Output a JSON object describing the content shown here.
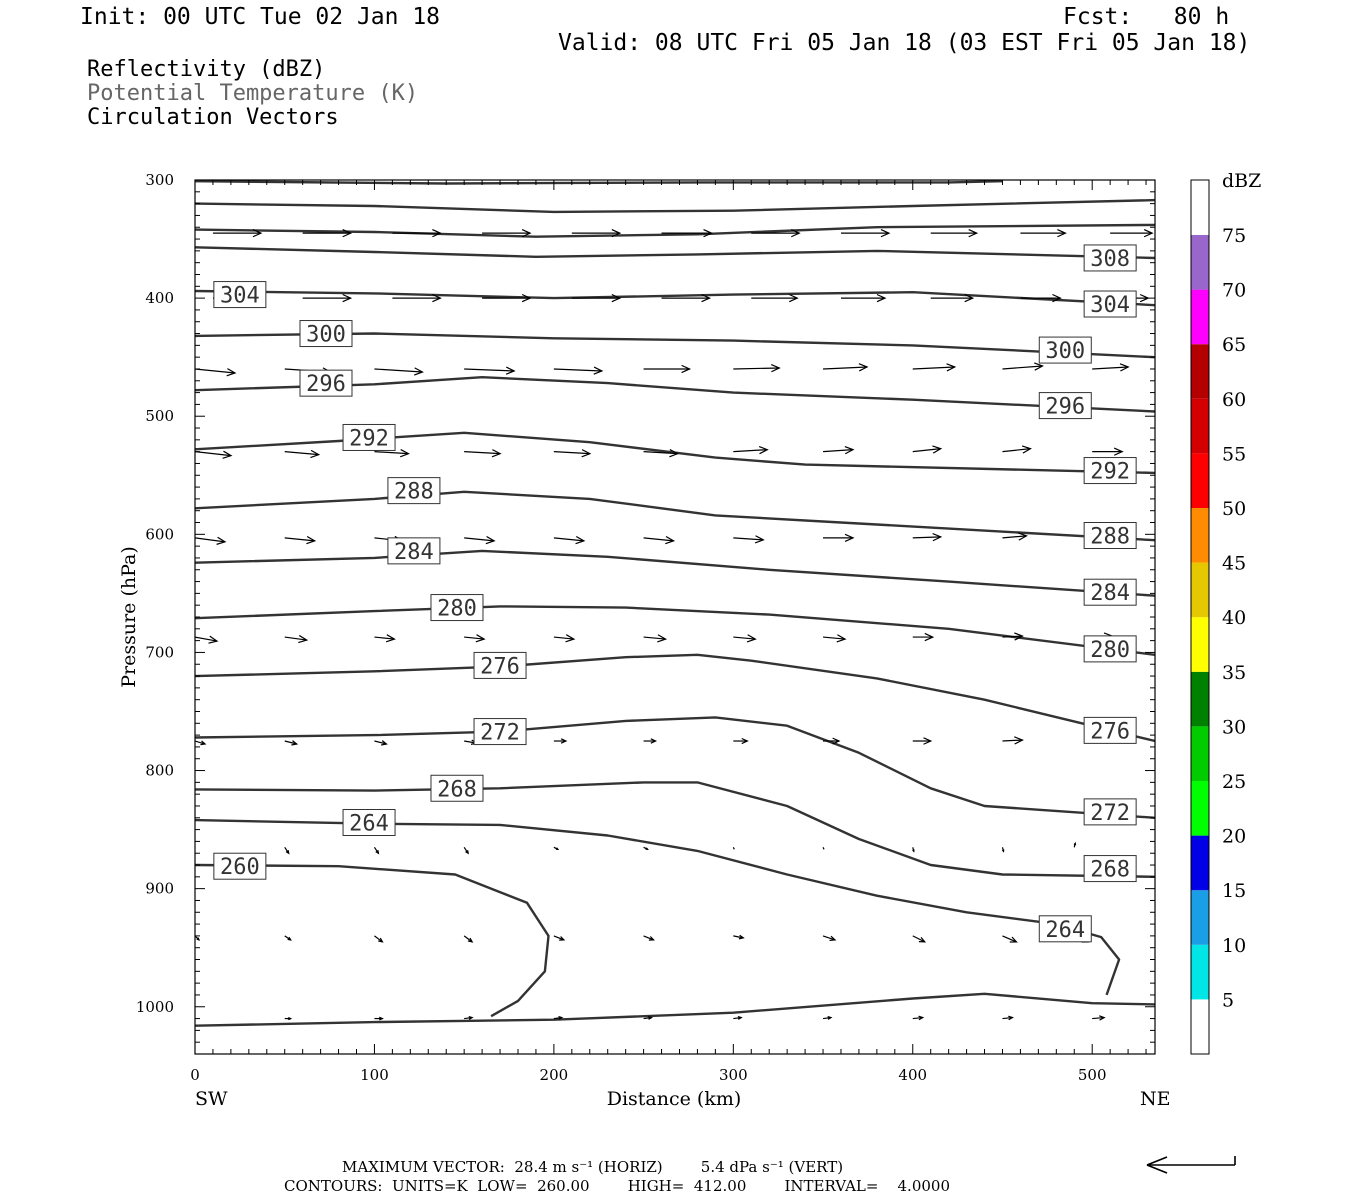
{
  "header": {
    "init": "Init: 00 UTC Tue 02 Jan 18",
    "fcst": "Fcst:   80 h",
    "valid": "Valid: 08 UTC Fri 05 Jan 18 (03 EST Fri 05 Jan 18)"
  },
  "legend": {
    "reflectivity": "Reflectivity (dBZ)",
    "theta": "Potential Temperature (K)",
    "vectors": "Circulation Vectors"
  },
  "colorbar": {
    "unit": "dBZ",
    "levels": [
      "5",
      "10",
      "15",
      "20",
      "25",
      "30",
      "35",
      "40",
      "45",
      "50",
      "55",
      "60",
      "65",
      "70",
      "75"
    ],
    "colors": [
      "#00e5e5",
      "#1a9ee6",
      "#0000e6",
      "#00ff00",
      "#00cc00",
      "#008000",
      "#ffff00",
      "#e6c800",
      "#ff8c00",
      "#ff0000",
      "#d40000",
      "#b40000",
      "#ff00ff",
      "#9966cc",
      "#ffffff"
    ]
  },
  "footer": {
    "line1": "MAXIMUM VECTOR:  28.4 m s⁻¹ (HORIZ)        5.4 dPa s⁻¹ (VERT)",
    "line2": "CONTOURS:  UNITS=K  LOW=  260.00        HIGH=  412.00        INTERVAL=    4.0000"
  },
  "chart_data": {
    "type": "cross-section",
    "xlabel": "Distance (km)",
    "ylabel": "Pressure (hPa)",
    "xlim": [
      0,
      535
    ],
    "ylim": [
      1040,
      300
    ],
    "x_ticks": [
      0,
      100,
      200,
      300,
      400,
      500
    ],
    "y_ticks": [
      300,
      400,
      500,
      600,
      700,
      800,
      900,
      1000
    ],
    "x_end_labels": {
      "left": "SW",
      "right": "NE"
    },
    "contour_labels": [
      {
        "text": "308",
        "x": 510,
        "p": 366
      },
      {
        "text": "304",
        "x": 25,
        "p": 397
      },
      {
        "text": "304",
        "x": 510,
        "p": 405
      },
      {
        "text": "300",
        "x": 73,
        "p": 430
      },
      {
        "text": "300",
        "x": 485,
        "p": 444
      },
      {
        "text": "296",
        "x": 73,
        "p": 472
      },
      {
        "text": "296",
        "x": 485,
        "p": 491
      },
      {
        "text": "292",
        "x": 97,
        "p": 518
      },
      {
        "text": "292",
        "x": 510,
        "p": 546
      },
      {
        "text": "288",
        "x": 122,
        "p": 563
      },
      {
        "text": "288",
        "x": 510,
        "p": 601
      },
      {
        "text": "284",
        "x": 122,
        "p": 614
      },
      {
        "text": "284",
        "x": 510,
        "p": 649
      },
      {
        "text": "280",
        "x": 146,
        "p": 662
      },
      {
        "text": "280",
        "x": 510,
        "p": 697
      },
      {
        "text": "276",
        "x": 170,
        "p": 711
      },
      {
        "text": "276",
        "x": 510,
        "p": 766
      },
      {
        "text": "272",
        "x": 170,
        "p": 767
      },
      {
        "text": "272",
        "x": 510,
        "p": 835
      },
      {
        "text": "268",
        "x": 146,
        "p": 815
      },
      {
        "text": "268",
        "x": 510,
        "p": 883
      },
      {
        "text": "264",
        "x": 97,
        "p": 844
      },
      {
        "text": "264",
        "x": 485,
        "p": 934
      },
      {
        "text": "260",
        "x": 25,
        "p": 881
      }
    ],
    "theta_contours": [
      {
        "theta": 312,
        "points": [
          [
            0,
            301
          ],
          [
            140,
            303
          ],
          [
            280,
            302
          ],
          [
            420,
            302
          ],
          [
            450,
            301
          ]
        ]
      },
      {
        "theta": 310,
        "points": [
          [
            0,
            320
          ],
          [
            100,
            322
          ],
          [
            200,
            327
          ],
          [
            300,
            326
          ],
          [
            400,
            322
          ],
          [
            535,
            317
          ]
        ]
      },
      {
        "theta": 308,
        "points": [
          [
            0,
            342
          ],
          [
            100,
            344
          ],
          [
            190,
            348
          ],
          [
            280,
            346
          ],
          [
            380,
            340
          ],
          [
            535,
            338
          ]
        ]
      },
      {
        "theta": 306,
        "points": [
          [
            0,
            357
          ],
          [
            100,
            361
          ],
          [
            190,
            365
          ],
          [
            280,
            363
          ],
          [
            380,
            360
          ],
          [
            535,
            366
          ]
        ]
      },
      {
        "theta": 304,
        "points": [
          [
            0,
            394
          ],
          [
            100,
            396
          ],
          [
            200,
            400
          ],
          [
            300,
            397
          ],
          [
            400,
            395
          ],
          [
            535,
            406
          ]
        ]
      },
      {
        "theta": 300,
        "points": [
          [
            0,
            432
          ],
          [
            100,
            430
          ],
          [
            200,
            434
          ],
          [
            300,
            436
          ],
          [
            400,
            440
          ],
          [
            535,
            450
          ]
        ]
      },
      {
        "theta": 296,
        "points": [
          [
            0,
            478
          ],
          [
            100,
            473
          ],
          [
            160,
            467
          ],
          [
            230,
            472
          ],
          [
            300,
            480
          ],
          [
            400,
            486
          ],
          [
            535,
            496
          ]
        ]
      },
      {
        "theta": 292,
        "points": [
          [
            0,
            528
          ],
          [
            80,
            521
          ],
          [
            150,
            514
          ],
          [
            220,
            522
          ],
          [
            290,
            535
          ],
          [
            340,
            541
          ],
          [
            535,
            548
          ]
        ]
      },
      {
        "theta": 288,
        "points": [
          [
            0,
            578
          ],
          [
            100,
            570
          ],
          [
            150,
            564
          ],
          [
            220,
            570
          ],
          [
            290,
            584
          ],
          [
            360,
            590
          ],
          [
            535,
            605
          ]
        ]
      },
      {
        "theta": 284,
        "points": [
          [
            0,
            624
          ],
          [
            100,
            620
          ],
          [
            160,
            614
          ],
          [
            230,
            619
          ],
          [
            320,
            630
          ],
          [
            420,
            640
          ],
          [
            535,
            652
          ]
        ]
      },
      {
        "theta": 280,
        "points": [
          [
            0,
            671
          ],
          [
            100,
            665
          ],
          [
            170,
            661
          ],
          [
            240,
            662
          ],
          [
            320,
            668
          ],
          [
            420,
            680
          ],
          [
            535,
            702
          ]
        ]
      },
      {
        "theta": 276,
        "points": [
          [
            0,
            720
          ],
          [
            100,
            716
          ],
          [
            170,
            712
          ],
          [
            240,
            704
          ],
          [
            280,
            702
          ],
          [
            310,
            707
          ],
          [
            380,
            722
          ],
          [
            440,
            740
          ],
          [
            535,
            775
          ]
        ]
      },
      {
        "theta": 272,
        "points": [
          [
            0,
            772
          ],
          [
            100,
            770
          ],
          [
            170,
            767
          ],
          [
            240,
            758
          ],
          [
            290,
            755
          ],
          [
            330,
            762
          ],
          [
            370,
            785
          ],
          [
            410,
            815
          ],
          [
            440,
            830
          ],
          [
            535,
            840
          ]
        ]
      },
      {
        "theta": 268,
        "points": [
          [
            0,
            816
          ],
          [
            100,
            817
          ],
          [
            170,
            815
          ],
          [
            250,
            810
          ],
          [
            280,
            810
          ],
          [
            330,
            830
          ],
          [
            370,
            858
          ],
          [
            410,
            880
          ],
          [
            450,
            888
          ],
          [
            535,
            890
          ]
        ]
      },
      {
        "theta": 264,
        "points": [
          [
            0,
            842
          ],
          [
            100,
            845
          ],
          [
            170,
            846
          ],
          [
            230,
            855
          ],
          [
            280,
            868
          ],
          [
            330,
            888
          ],
          [
            380,
            906
          ],
          [
            430,
            920
          ],
          [
            480,
            930
          ],
          [
            505,
            941
          ],
          [
            515,
            960
          ],
          [
            508,
            990
          ]
        ]
      },
      {
        "theta": 260,
        "points": [
          [
            0,
            880
          ],
          [
            80,
            881
          ],
          [
            145,
            888
          ],
          [
            185,
            912
          ],
          [
            197,
            940
          ],
          [
            195,
            970
          ],
          [
            180,
            995
          ],
          [
            165,
            1008
          ]
        ]
      },
      {
        "theta": 256,
        "points": [
          [
            0,
            1016
          ],
          [
            100,
            1013
          ],
          [
            200,
            1011
          ],
          [
            300,
            1005
          ],
          [
            400,
            993
          ],
          [
            440,
            989
          ],
          [
            500,
            997
          ],
          [
            535,
            998
          ]
        ]
      }
    ],
    "vector_rows": [
      {
        "p": 345,
        "x": [
          10,
          60,
          110,
          160,
          210,
          260,
          310,
          360,
          410,
          460,
          510
        ],
        "u": [
          48,
          48,
          48,
          48,
          48,
          50,
          48,
          48,
          46,
          45,
          42
        ],
        "w": [
          0,
          0,
          0,
          0,
          0,
          0,
          0,
          0,
          0,
          0,
          0
        ]
      },
      {
        "p": 400,
        "x": [
          10,
          60,
          110,
          160,
          210,
          260,
          310,
          360,
          410,
          460,
          510
        ],
        "u": [
          48,
          48,
          48,
          48,
          48,
          48,
          46,
          44,
          42,
          40,
          38
        ],
        "w": [
          0,
          0,
          0,
          0,
          0,
          0,
          0,
          0,
          0,
          0,
          0
        ]
      },
      {
        "p": 460,
        "x": [
          0,
          50,
          100,
          150,
          200,
          250,
          300,
          350,
          400,
          450,
          500
        ],
        "u": [
          40,
          46,
          48,
          50,
          48,
          46,
          46,
          44,
          42,
          40,
          36
        ],
        "w": [
          4,
          3,
          3,
          2,
          2,
          0,
          -1,
          -2,
          -2,
          -3,
          -2
        ]
      },
      {
        "p": 530,
        "x": [
          0,
          50,
          100,
          150,
          200,
          250,
          300,
          350,
          400,
          450,
          500
        ],
        "u": [
          36,
          34,
          34,
          36,
          36,
          34,
          34,
          30,
          28,
          28,
          30
        ],
        "w": [
          4,
          3,
          2,
          2,
          2,
          2,
          -2,
          -2,
          -3,
          -3,
          0
        ]
      },
      {
        "p": 603,
        "x": [
          0,
          50,
          100,
          150,
          200,
          250,
          300,
          350,
          400,
          450,
          500
        ],
        "u": [
          30,
          30,
          28,
          30,
          30,
          30,
          30,
          30,
          28,
          24,
          22
        ],
        "w": [
          4,
          3,
          3,
          3,
          3,
          3,
          2,
          0,
          -1,
          -2,
          -2
        ]
      },
      {
        "p": 687,
        "x": [
          0,
          50,
          100,
          150,
          200,
          250,
          300,
          350,
          400,
          450,
          500
        ],
        "u": [
          22,
          22,
          20,
          20,
          20,
          22,
          22,
          22,
          20,
          20,
          20
        ],
        "w": [
          4,
          3,
          2,
          2,
          2,
          2,
          2,
          2,
          0,
          -1,
          -1
        ]
      },
      {
        "p": 775,
        "x": [
          0,
          50,
          100,
          150,
          200,
          250,
          300,
          350,
          400,
          450,
          500
        ],
        "u": [
          10,
          12,
          12,
          12,
          12,
          12,
          14,
          16,
          18,
          20,
          22
        ],
        "w": [
          3,
          3,
          3,
          2,
          0,
          0,
          0,
          0,
          0,
          -1,
          -2
        ]
      },
      {
        "p": 865,
        "x": [
          50,
          100,
          150,
          200,
          250,
          300,
          350,
          400,
          450,
          490
        ],
        "u": [
          4,
          4,
          4,
          4,
          4,
          1,
          1,
          1,
          1,
          1
        ],
        "w": [
          6,
          6,
          6,
          2,
          2,
          2,
          2,
          4,
          4,
          -4
        ]
      },
      {
        "p": 940,
        "x": [
          0,
          50,
          100,
          150,
          200,
          250,
          300,
          350,
          400,
          450,
          490
        ],
        "u": [
          4,
          6,
          8,
          8,
          10,
          10,
          10,
          12,
          12,
          14,
          14
        ],
        "w": [
          4,
          4,
          6,
          6,
          4,
          4,
          2,
          4,
          6,
          6,
          6
        ]
      },
      {
        "p": 1010,
        "x": [
          50,
          100,
          150,
          200,
          250,
          300,
          350,
          400,
          450,
          500
        ],
        "u": [
          6,
          8,
          8,
          8,
          8,
          8,
          8,
          10,
          10,
          12
        ],
        "w": [
          0,
          0,
          -1,
          -1,
          -1,
          -1,
          -1,
          -1,
          -1,
          -1
        ]
      }
    ]
  }
}
